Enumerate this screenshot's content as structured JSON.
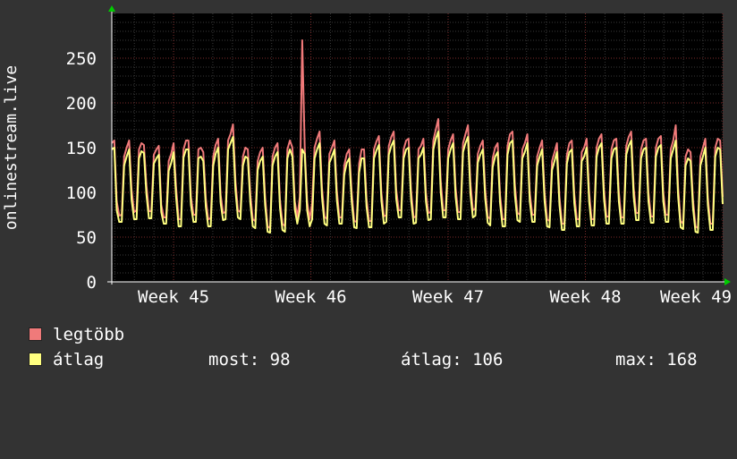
{
  "chart_data": {
    "type": "line",
    "ylabel": "onlinestream.live",
    "ylim": [
      0,
      300
    ],
    "yticks": [
      0,
      50,
      100,
      150,
      200,
      250
    ],
    "xlim": [
      44.55,
      49.0
    ],
    "xticks": [
      {
        "value": 45,
        "label": "Week 45"
      },
      {
        "value": 46,
        "label": "Week 46"
      },
      {
        "value": 47,
        "label": "Week 47"
      },
      {
        "value": 48,
        "label": "Week 48"
      },
      {
        "value": 49,
        "label": "Week 49"
      }
    ],
    "grid": true,
    "series": [
      {
        "name": "legtöbb",
        "color": "#f07a7a",
        "x_start": 44.55,
        "x_end": 49.0,
        "values": [
          155,
          158,
          90,
          74,
          75,
          140,
          150,
          158,
          103,
          78,
          80,
          148,
          155,
          153,
          108,
          79,
          79,
          142,
          148,
          152,
          86,
          72,
          72,
          135,
          143,
          155,
          105,
          70,
          70,
          148,
          158,
          158,
          95,
          75,
          75,
          148,
          150,
          145,
          93,
          70,
          71,
          140,
          153,
          160,
          97,
          77,
          78,
          158,
          165,
          176,
          112,
          80,
          78,
          140,
          150,
          148,
          98,
          70,
          68,
          135,
          145,
          150,
          95,
          62,
          60,
          140,
          150,
          155,
          92,
          65,
          62,
          148,
          158,
          150,
          90,
          72,
          95,
          270,
          150,
          90,
          70,
          88,
          150,
          160,
          168,
          105,
          73,
          70,
          143,
          150,
          158,
          102,
          72,
          72,
          130,
          143,
          148,
          100,
          68,
          67,
          132,
          148,
          148,
          93,
          68,
          68,
          148,
          157,
          163,
          100,
          73,
          75,
          152,
          162,
          168,
          103,
          80,
          80,
          148,
          158,
          160,
          102,
          72,
          73,
          148,
          152,
          160,
          100,
          77,
          78,
          158,
          170,
          182,
          112,
          80,
          80,
          148,
          158,
          165,
          105,
          78,
          78,
          155,
          165,
          175,
          110,
          80,
          82,
          143,
          152,
          158,
          103,
          73,
          70,
          138,
          150,
          155,
          97,
          70,
          70,
          152,
          165,
          168,
          108,
          77,
          75,
          148,
          155,
          165,
          100,
          75,
          75,
          140,
          150,
          158,
          100,
          70,
          68,
          135,
          145,
          155,
          95,
          65,
          65,
          142,
          155,
          158,
          98,
          70,
          70,
          145,
          150,
          160,
          100,
          70,
          70,
          150,
          160,
          165,
          103,
          73,
          73,
          148,
          158,
          160,
          100,
          72,
          72,
          152,
          162,
          168,
          105,
          77,
          77,
          148,
          158,
          160,
          100,
          73,
          73,
          150,
          160,
          163,
          100,
          75,
          75,
          148,
          158,
          175,
          105,
          68,
          65,
          140,
          148,
          145,
          92,
          62,
          60,
          140,
          150,
          160,
          95,
          65,
          65,
          150,
          160,
          158,
          95
        ]
      },
      {
        "name": "átlag",
        "color": "#ffff80",
        "x_start": 44.55,
        "x_end": 49.0,
        "values": [
          148,
          150,
          80,
          67,
          67,
          130,
          140,
          148,
          92,
          70,
          70,
          138,
          146,
          144,
          98,
          71,
          71,
          132,
          138,
          142,
          78,
          65,
          65,
          124,
          133,
          145,
          95,
          62,
          62,
          139,
          148,
          148,
          86,
          67,
          67,
          138,
          140,
          135,
          84,
          62,
          62,
          130,
          143,
          150,
          88,
          69,
          70,
          148,
          155,
          162,
          102,
          72,
          70,
          130,
          140,
          138,
          88,
          62,
          60,
          125,
          135,
          140,
          86,
          56,
          55,
          130,
          140,
          145,
          83,
          58,
          56,
          138,
          148,
          140,
          81,
          65,
          80,
          148,
          143,
          80,
          62,
          70,
          138,
          148,
          155,
          95,
          65,
          63,
          133,
          140,
          148,
          92,
          65,
          65,
          120,
          133,
          138,
          90,
          61,
          60,
          122,
          138,
          138,
          84,
          61,
          61,
          138,
          147,
          153,
          91,
          65,
          67,
          142,
          152,
          158,
          93,
          72,
          72,
          138,
          148,
          150,
          92,
          65,
          66,
          138,
          142,
          150,
          90,
          69,
          70,
          148,
          160,
          168,
          100,
          72,
          72,
          138,
          148,
          155,
          95,
          70,
          70,
          145,
          155,
          162,
          98,
          72,
          74,
          133,
          142,
          148,
          93,
          66,
          63,
          128,
          140,
          145,
          88,
          62,
          62,
          142,
          155,
          158,
          97,
          69,
          67,
          138,
          145,
          155,
          90,
          67,
          67,
          130,
          140,
          148,
          90,
          62,
          61,
          125,
          135,
          145,
          86,
          58,
          58,
          132,
          145,
          148,
          88,
          62,
          62,
          135,
          140,
          150,
          90,
          63,
          63,
          140,
          150,
          155,
          93,
          65,
          65,
          138,
          148,
          150,
          90,
          65,
          65,
          142,
          152,
          158,
          95,
          69,
          69,
          138,
          148,
          150,
          90,
          66,
          66,
          140,
          150,
          153,
          90,
          67,
          67,
          138,
          148,
          158,
          95,
          61,
          59,
          130,
          138,
          135,
          83,
          56,
          55,
          130,
          140,
          150,
          86,
          58,
          58,
          140,
          150,
          148,
          87
        ]
      }
    ]
  },
  "legend": {
    "max_label": "legtöbb",
    "avg_label": "átlag",
    "stats": {
      "current": "most: 98",
      "average": "átlag: 106",
      "maximum": "max: 168"
    }
  }
}
